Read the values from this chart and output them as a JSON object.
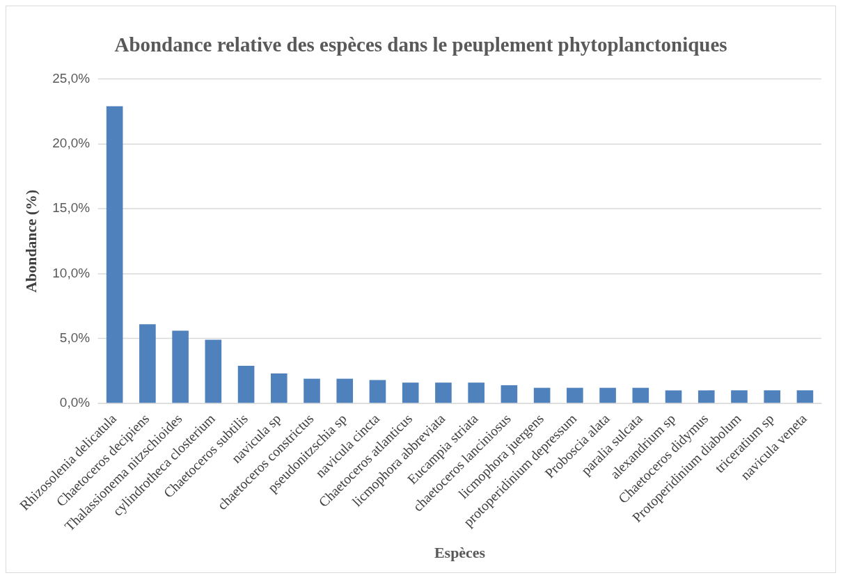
{
  "chart_data": {
    "type": "bar",
    "title": "Abondance relative des espèces dans le peuplement phytoplanctoniques",
    "xlabel": "Espèces",
    "ylabel": "Abondance (%)",
    "categories": [
      "Rhizosolenia delicatula",
      "Chaetoceros decipiens",
      "Thalassionema nitzschioides",
      "cylindrotheca closterium",
      "Chaetoceros subtilis",
      "navicula sp",
      "chaetoceros constrictus",
      "pseudonitzschia sp",
      "navicula cincta",
      "Chaetoceros atlanticus",
      "licmophora abbreviata",
      "Eucampia striata",
      "chaetoceros lanciniosus",
      "licmophora juergens",
      "protoperidinium depressum",
      "Proboscia alata",
      "paralia sulcata",
      "alexandrium sp",
      "Chaetoceros didymus",
      "Protoperidinium diabolum",
      "triceratium sp",
      "navicula veneta"
    ],
    "values": [
      22.9,
      6.1,
      5.6,
      4.9,
      2.9,
      2.3,
      1.9,
      1.9,
      1.8,
      1.6,
      1.6,
      1.6,
      1.4,
      1.2,
      1.2,
      1.2,
      1.2,
      1.0,
      1.0,
      1.0,
      1.0,
      1.0
    ],
    "color": "#4f81bd",
    "ylim": [
      0,
      25
    ],
    "yticks": [
      {
        "value": 0,
        "label": "0,0%"
      },
      {
        "value": 5,
        "label": "5,0%"
      },
      {
        "value": 10,
        "label": "10,0%"
      },
      {
        "value": 15,
        "label": "15,0%"
      },
      {
        "value": 20,
        "label": "20,0%"
      },
      {
        "value": 25,
        "label": "25,0%"
      }
    ],
    "grid": "y",
    "legend": false
  }
}
